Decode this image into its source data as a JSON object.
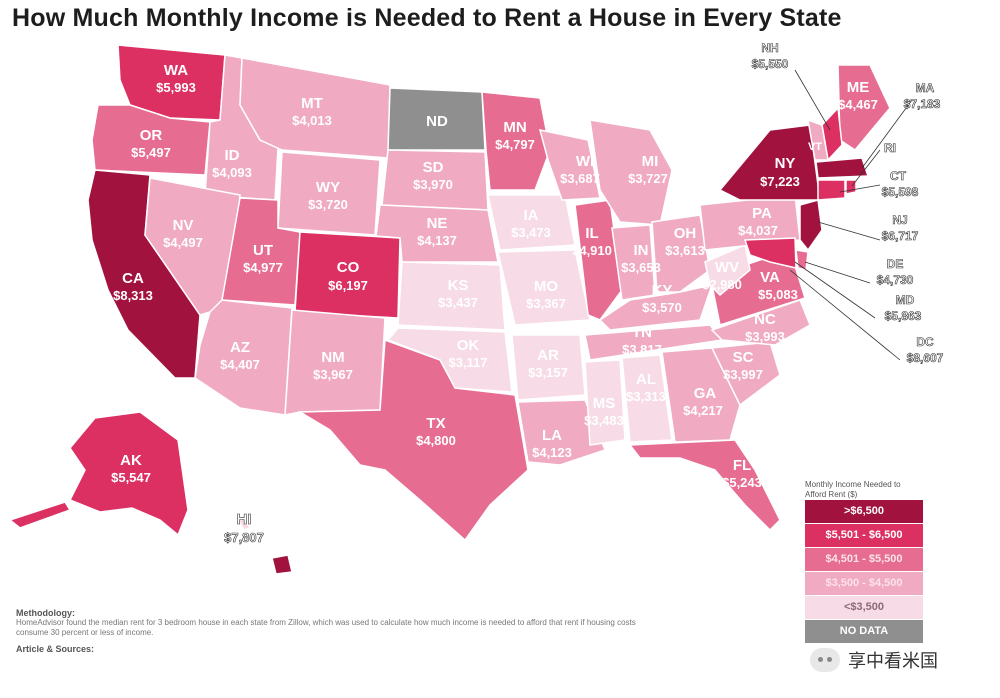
{
  "title": "How Much Monthly Income is Needed to Rent a House in Every State",
  "colors": {
    "tier1": "#a1123f",
    "tier2": "#dc2f62",
    "tier3": "#e66c92",
    "tier4": "#f0aac2",
    "tier5": "#f7dbe6",
    "nodata": "#8f8f8f",
    "border": "#ffffff"
  },
  "states": {
    "WA": {
      "abbr": "WA",
      "value": "$5,993"
    },
    "OR": {
      "abbr": "OR",
      "value": "$5,497"
    },
    "CA": {
      "abbr": "CA",
      "value": "$8,313"
    },
    "ID": {
      "abbr": "ID",
      "value": "$4,093"
    },
    "NV": {
      "abbr": "NV",
      "value": "$4,497"
    },
    "MT": {
      "abbr": "MT",
      "value": "$4,013"
    },
    "WY": {
      "abbr": "WY",
      "value": "$3,720"
    },
    "UT": {
      "abbr": "UT",
      "value": "$4,977"
    },
    "AZ": {
      "abbr": "AZ",
      "value": "$4,407"
    },
    "CO": {
      "abbr": "CO",
      "value": "$6,197"
    },
    "NM": {
      "abbr": "NM",
      "value": "$3,967"
    },
    "ND": {
      "abbr": "ND",
      "value": ""
    },
    "SD": {
      "abbr": "SD",
      "value": "$3,970"
    },
    "NE": {
      "abbr": "NE",
      "value": "$4,137"
    },
    "KS": {
      "abbr": "KS",
      "value": "$3,437"
    },
    "OK": {
      "abbr": "OK",
      "value": "$3,117"
    },
    "TX": {
      "abbr": "TX",
      "value": "$4,800"
    },
    "MN": {
      "abbr": "MN",
      "value": "$4,797"
    },
    "IA": {
      "abbr": "IA",
      "value": "$3,473"
    },
    "MO": {
      "abbr": "MO",
      "value": "$3,367"
    },
    "AR": {
      "abbr": "AR",
      "value": "$3,157"
    },
    "LA": {
      "abbr": "LA",
      "value": "$4,123"
    },
    "WI": {
      "abbr": "WI",
      "value": "$3,687"
    },
    "IL": {
      "abbr": "IL",
      "value": "$4,910"
    },
    "MI": {
      "abbr": "MI",
      "value": "$3,727"
    },
    "IN": {
      "abbr": "IN",
      "value": "$3,653"
    },
    "OH": {
      "abbr": "OH",
      "value": "$3,613"
    },
    "KY": {
      "abbr": "KY",
      "value": "$3,570"
    },
    "TN": {
      "abbr": "TN",
      "value": "$3,817"
    },
    "MS": {
      "abbr": "MS",
      "value": "$3,483"
    },
    "AL": {
      "abbr": "AL",
      "value": "$3,313"
    },
    "GA": {
      "abbr": "GA",
      "value": "$4,217"
    },
    "FL": {
      "abbr": "FL",
      "value": "$5,243"
    },
    "SC": {
      "abbr": "SC",
      "value": "$3,997"
    },
    "NC": {
      "abbr": "NC",
      "value": "$3,993"
    },
    "VA": {
      "abbr": "VA",
      "value": "$5,083"
    },
    "WV": {
      "abbr": "WV",
      "value": "$2,980"
    },
    "PA": {
      "abbr": "PA",
      "value": "$4,037"
    },
    "NY": {
      "abbr": "NY",
      "value": "$7,223"
    },
    "ME": {
      "abbr": "ME",
      "value": "$4,467"
    },
    "AK": {
      "abbr": "AK",
      "value": "$5,547"
    },
    "HI": {
      "abbr": "HI",
      "value": "$7,807"
    }
  },
  "callouts": {
    "NH": {
      "abbr": "NH",
      "value": "$5,550"
    },
    "MA": {
      "abbr": "MA",
      "value": "$7,183"
    },
    "RI": {
      "abbr": "RI",
      "value": ""
    },
    "CT": {
      "abbr": "CT",
      "value": "$5,598"
    },
    "NJ": {
      "abbr": "NJ",
      "value": "$6,717"
    },
    "DE": {
      "abbr": "DE",
      "value": "$4,730"
    },
    "MD": {
      "abbr": "MD",
      "value": "$5,863"
    },
    "DC": {
      "abbr": "DC",
      "value": "$8,607"
    },
    "VT": {
      "abbr": "VT",
      "value": ""
    }
  },
  "legend": {
    "title": "Monthly Income Needed to Afford Rent ($)",
    "rows": [
      {
        "label": ">$6,500",
        "color": "#a1123f",
        "text_color": "#ffffff"
      },
      {
        "label": "$5,501 - $6,500",
        "color": "#dc2f62",
        "text_color": "#ffffff"
      },
      {
        "label": "$4,501 - $5,500",
        "color": "#e66c92",
        "text_color": "#fde3ea"
      },
      {
        "label": "$3,500 - $4,500",
        "color": "#f0aac2",
        "text_color": "#fde3ea"
      },
      {
        "label": "<$3,500",
        "color": "#f7dbe6",
        "text_color": "#8c6a76"
      },
      {
        "label": "NO DATA",
        "color": "#8f8f8f",
        "text_color": "#ffffff"
      }
    ]
  },
  "notes": {
    "methodology_heading": "Methodology:",
    "methodology_text": "HomeAdvisor found the median rent for 3 bedroom house in each state from Zillow, which was used to calculate how much income is needed to afford that rent if housing costs consume 30 percent or less of income.",
    "sources_heading": "Article & Sources:"
  },
  "watermark": {
    "text": "享中看米国"
  }
}
